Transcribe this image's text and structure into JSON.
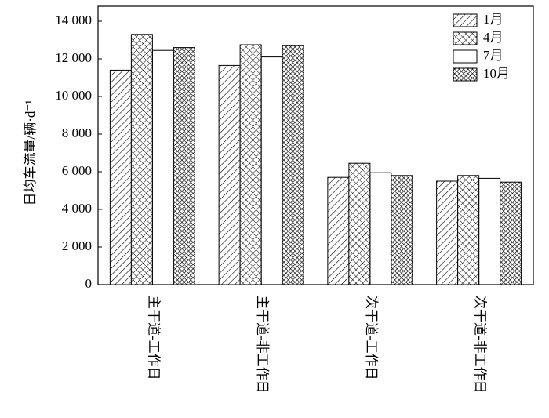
{
  "chart_data": {
    "type": "bar",
    "ylabel": "日均车流量/辆·d⁻¹",
    "categories": [
      "主干道-工作日",
      "主干道-非工作日",
      "次干道-工作日",
      "次干道-非工作日"
    ],
    "series": [
      {
        "name": "1月",
        "color": "#000000",
        "hatch": "/",
        "values": [
          11400,
          11650,
          5700,
          5500
        ]
      },
      {
        "name": "4月",
        "color": "#000000",
        "hatch": "x",
        "values": [
          13300,
          12750,
          6450,
          5800
        ]
      },
      {
        "name": "7月",
        "color": "#000000",
        "hatch": "\\",
        "values": [
          12450,
          12100,
          5950,
          5650
        ]
      },
      {
        "name": "10月",
        "color": "#000000",
        "hatch": "xx",
        "values": [
          12600,
          12700,
          5800,
          5450
        ]
      }
    ],
    "ylim": [
      0,
      14000
    ],
    "yticks": [
      0,
      {
        "value": 2000,
        "label": "2 000"
      },
      {
        "value": 4000,
        "label": "4 000"
      },
      {
        "value": 6000,
        "label": "6 000"
      },
      {
        "value": 8000,
        "label": "8 000"
      },
      {
        "value": 10000,
        "label": "10 000"
      },
      {
        "value": 12000,
        "label": "12 000"
      },
      {
        "value": 14000,
        "label": "14 000"
      }
    ],
    "legend": "upper right"
  }
}
